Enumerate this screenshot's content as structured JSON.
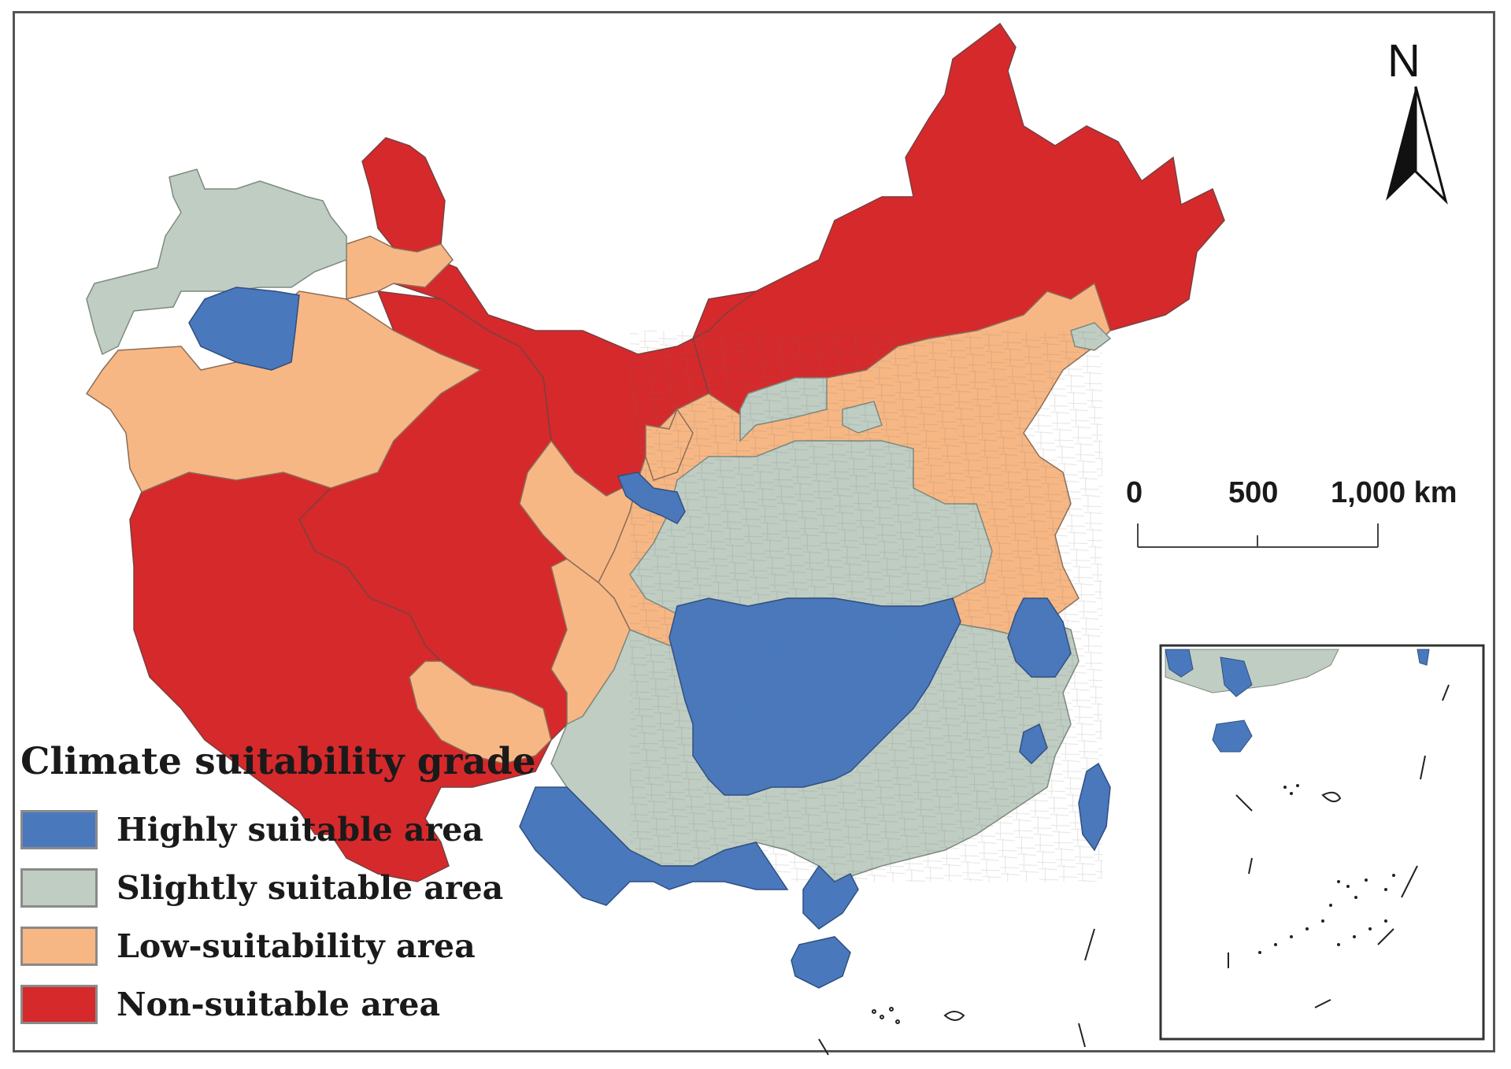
{
  "map": {
    "north_label": "N",
    "scale_bar": {
      "labels": [
        "0",
        "500",
        "1,000 km"
      ]
    },
    "legend": {
      "title": "Climate suitability grade",
      "items": [
        {
          "label": "Highly suitable area",
          "color": "#4a78bd",
          "class": "highly-suitable"
        },
        {
          "label": "Slightly suitable area",
          "color": "#c0cdc3",
          "class": "slightly-suitable"
        },
        {
          "label": "Low-suitability area",
          "color": "#f7b784",
          "class": "low-suitability"
        },
        {
          "label": "Non-suitable area",
          "color": "#d6292b",
          "class": "non-suitable"
        }
      ]
    },
    "colors": {
      "boundary": "#6e6e6e",
      "frame": "#555555",
      "background": "#ffffff"
    }
  }
}
